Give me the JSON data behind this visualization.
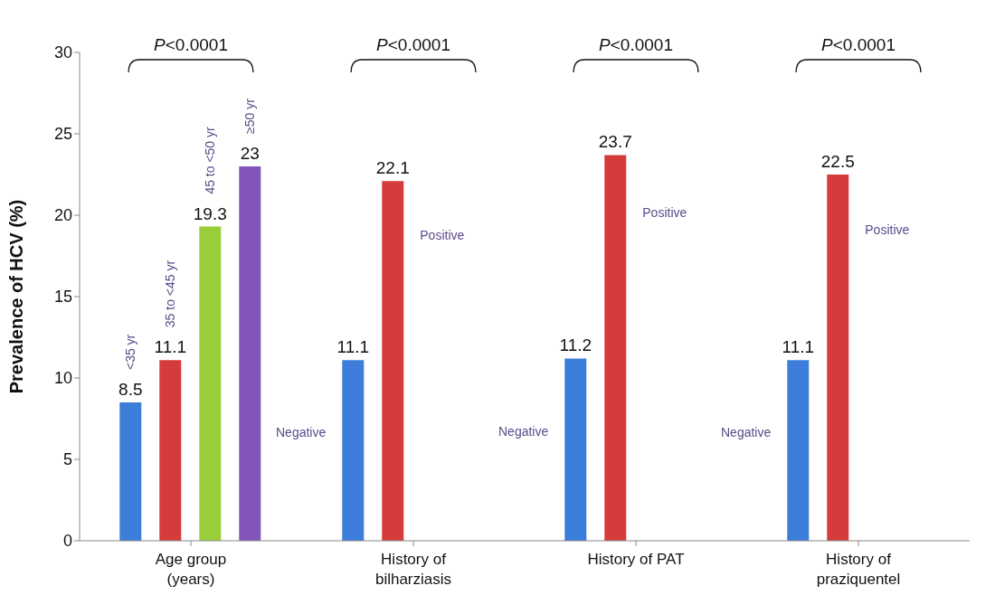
{
  "chart_data": {
    "type": "bar",
    "categories": [
      "Age group (years)",
      "History of bilharziasis",
      "History of PAT",
      "History of praziquentel"
    ],
    "series": [
      {
        "color": "#3b7dd8",
        "values": [
          8.5,
          11.1,
          11.2,
          11.1
        ]
      },
      {
        "color": "#d63b3b",
        "values": [
          11.1,
          22.1,
          23.7,
          22.5
        ]
      },
      {
        "color": "#9acd3a",
        "values": [
          19.3,
          null,
          null,
          null
        ]
      },
      {
        "color": "#8256b8",
        "values": [
          23,
          null,
          null,
          null
        ]
      }
    ],
    "ylabel": "Prevalence of HCV (%)",
    "ylim": [
      0,
      30
    ],
    "yticks": [
      0,
      5,
      10,
      15,
      20,
      25,
      30
    ],
    "grid": false,
    "legend": false,
    "data_labels": true,
    "annotations": [
      "<35 yr",
      "35 to <45 yr",
      "45 to <50 yr",
      "≥50 yr",
      "Negative",
      "Positive",
      "Negative",
      "Positive",
      "Negative",
      "Positive",
      "P<0.0001",
      "P<0.0001",
      "P<0.0001",
      "P<0.0001"
    ]
  }
}
